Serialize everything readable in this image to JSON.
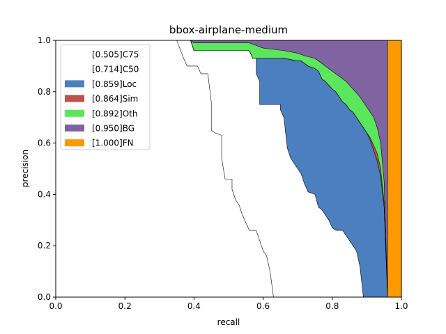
{
  "chart_data": {
    "type": "area",
    "title": "bbox-airplane-medium",
    "xlabel": "recall",
    "ylabel": "precision",
    "xlim": [
      0,
      1
    ],
    "ylim": [
      0,
      1
    ],
    "xticks": [
      "0.0",
      "0.2",
      "0.4",
      "0.6",
      "0.8",
      "1.0"
    ],
    "yticks": [
      "0.0",
      "0.2",
      "0.4",
      "0.6",
      "0.8",
      "1.0"
    ],
    "grid": false,
    "legend_position": "top-left",
    "legend": [
      {
        "label": "[0.505]C75",
        "color": "#ffffff"
      },
      {
        "label": "[0.714]C50",
        "color": "#ffffff"
      },
      {
        "label": "[0.859]Loc",
        "color": "#4c7fbe"
      },
      {
        "label": "[0.864]Sim",
        "color": "#c0504d"
      },
      {
        "label": "[0.892]Oth",
        "color": "#5ce65c"
      },
      {
        "label": "[0.950]BG",
        "color": "#8064a2"
      },
      {
        "label": "[1.000]FN",
        "color": "#ff9900"
      }
    ],
    "series": [
      {
        "name": "[0.505]C75",
        "color": "#ffffff",
        "points": [
          [
            0,
            1.0
          ],
          [
            0.35,
            1.0
          ],
          [
            0.37,
            0.93
          ],
          [
            0.38,
            0.9
          ],
          [
            0.41,
            0.9
          ],
          [
            0.42,
            0.87
          ],
          [
            0.44,
            0.87
          ],
          [
            0.45,
            0.76
          ],
          [
            0.45,
            0.65
          ],
          [
            0.46,
            0.64
          ],
          [
            0.48,
            0.63
          ],
          [
            0.48,
            0.54
          ],
          [
            0.49,
            0.46
          ],
          [
            0.51,
            0.46
          ],
          [
            0.51,
            0.42
          ],
          [
            0.52,
            0.38
          ],
          [
            0.53,
            0.36
          ],
          [
            0.54,
            0.32
          ],
          [
            0.55,
            0.29
          ],
          [
            0.56,
            0.26
          ],
          [
            0.58,
            0.26
          ],
          [
            0.59,
            0.22
          ],
          [
            0.6,
            0.18
          ],
          [
            0.61,
            0.16
          ],
          [
            0.62,
            0.1
          ],
          [
            0.63,
            0.0
          ]
        ]
      },
      {
        "name": "[0.714]C50",
        "color": "#ffffff",
        "points": [
          [
            0,
            1.0
          ],
          [
            0.39,
            1.0
          ],
          [
            0.4,
            0.96
          ],
          [
            0.56,
            0.96
          ],
          [
            0.57,
            0.93
          ],
          [
            0.58,
            0.93
          ],
          [
            0.58,
            0.87
          ],
          [
            0.59,
            0.84
          ],
          [
            0.59,
            0.75
          ],
          [
            0.61,
            0.75
          ],
          [
            0.65,
            0.75
          ],
          [
            0.65,
            0.73
          ],
          [
            0.66,
            0.7
          ],
          [
            0.67,
            0.58
          ],
          [
            0.68,
            0.54
          ],
          [
            0.7,
            0.5
          ],
          [
            0.71,
            0.48
          ],
          [
            0.72,
            0.44
          ],
          [
            0.73,
            0.41
          ],
          [
            0.75,
            0.4
          ],
          [
            0.76,
            0.35
          ],
          [
            0.77,
            0.34
          ],
          [
            0.78,
            0.32
          ],
          [
            0.79,
            0.3
          ],
          [
            0.8,
            0.27
          ],
          [
            0.81,
            0.26
          ],
          [
            0.82,
            0.26
          ],
          [
            0.83,
            0.26
          ],
          [
            0.84,
            0.24
          ],
          [
            0.85,
            0.22
          ],
          [
            0.86,
            0.2
          ],
          [
            0.87,
            0.18
          ],
          [
            0.88,
            0.12
          ],
          [
            0.89,
            0.0
          ]
        ]
      },
      {
        "name": "[0.859]Loc",
        "color": "#4c7fbe",
        "points": [
          [
            0,
            1.0
          ],
          [
            0.39,
            1.0
          ],
          [
            0.4,
            0.96
          ],
          [
            0.56,
            0.96
          ],
          [
            0.57,
            0.93
          ],
          [
            0.58,
            0.93
          ],
          [
            0.58,
            0.93
          ],
          [
            0.59,
            0.93
          ],
          [
            0.6,
            0.93
          ],
          [
            0.66,
            0.93
          ],
          [
            0.7,
            0.92
          ],
          [
            0.71,
            0.92
          ],
          [
            0.72,
            0.91
          ],
          [
            0.73,
            0.9
          ],
          [
            0.75,
            0.89
          ],
          [
            0.76,
            0.88
          ],
          [
            0.77,
            0.85
          ],
          [
            0.78,
            0.84
          ],
          [
            0.8,
            0.81
          ],
          [
            0.81,
            0.8
          ],
          [
            0.82,
            0.78
          ],
          [
            0.83,
            0.76
          ],
          [
            0.84,
            0.75
          ],
          [
            0.85,
            0.73
          ],
          [
            0.86,
            0.72
          ],
          [
            0.87,
            0.7
          ],
          [
            0.88,
            0.68
          ],
          [
            0.89,
            0.66
          ],
          [
            0.9,
            0.64
          ],
          [
            0.91,
            0.61
          ],
          [
            0.92,
            0.57
          ],
          [
            0.93,
            0.53
          ],
          [
            0.94,
            0.47
          ],
          [
            0.95,
            0.35
          ],
          [
            0.96,
            0.0
          ]
        ]
      },
      {
        "name": "[0.864]Sim",
        "color": "#c0504d",
        "points": [
          [
            0,
            1.0
          ],
          [
            0.39,
            1.0
          ],
          [
            0.4,
            0.96
          ],
          [
            0.56,
            0.96
          ],
          [
            0.57,
            0.93
          ],
          [
            0.58,
            0.93
          ],
          [
            0.59,
            0.93
          ],
          [
            0.6,
            0.93
          ],
          [
            0.66,
            0.93
          ],
          [
            0.7,
            0.92
          ],
          [
            0.71,
            0.92
          ],
          [
            0.72,
            0.91
          ],
          [
            0.73,
            0.9
          ],
          [
            0.75,
            0.89
          ],
          [
            0.76,
            0.88
          ],
          [
            0.77,
            0.85
          ],
          [
            0.78,
            0.84
          ],
          [
            0.8,
            0.81
          ],
          [
            0.81,
            0.8
          ],
          [
            0.82,
            0.78
          ],
          [
            0.83,
            0.76
          ],
          [
            0.84,
            0.75
          ],
          [
            0.85,
            0.73
          ],
          [
            0.86,
            0.72
          ],
          [
            0.87,
            0.7
          ],
          [
            0.88,
            0.68
          ],
          [
            0.89,
            0.66
          ],
          [
            0.9,
            0.64
          ],
          [
            0.91,
            0.62
          ],
          [
            0.92,
            0.59
          ],
          [
            0.93,
            0.56
          ],
          [
            0.94,
            0.5
          ],
          [
            0.95,
            0.37
          ],
          [
            0.96,
            0.0
          ]
        ]
      },
      {
        "name": "[0.892]Oth",
        "color": "#5ce65c",
        "points": [
          [
            0,
            1.0
          ],
          [
            0.39,
            1.0
          ],
          [
            0.4,
            0.99
          ],
          [
            0.56,
            0.99
          ],
          [
            0.58,
            0.98
          ],
          [
            0.6,
            0.97
          ],
          [
            0.66,
            0.96
          ],
          [
            0.7,
            0.95
          ],
          [
            0.72,
            0.94
          ],
          [
            0.75,
            0.93
          ],
          [
            0.77,
            0.91
          ],
          [
            0.8,
            0.88
          ],
          [
            0.82,
            0.86
          ],
          [
            0.84,
            0.84
          ],
          [
            0.86,
            0.81
          ],
          [
            0.88,
            0.78
          ],
          [
            0.9,
            0.74
          ],
          [
            0.92,
            0.7
          ],
          [
            0.93,
            0.66
          ],
          [
            0.94,
            0.6
          ],
          [
            0.95,
            0.45
          ],
          [
            0.96,
            0.0
          ]
        ]
      },
      {
        "name": "[0.950]BG",
        "color": "#8064a2",
        "points": [
          [
            0,
            1.0
          ],
          [
            0.96,
            1.0
          ],
          [
            0.96,
            0.0
          ]
        ]
      },
      {
        "name": "[1.000]FN",
        "color": "#ff9900",
        "points": [
          [
            0,
            1.0
          ],
          [
            1.0,
            1.0
          ],
          [
            1.0,
            0.0
          ]
        ]
      }
    ]
  }
}
